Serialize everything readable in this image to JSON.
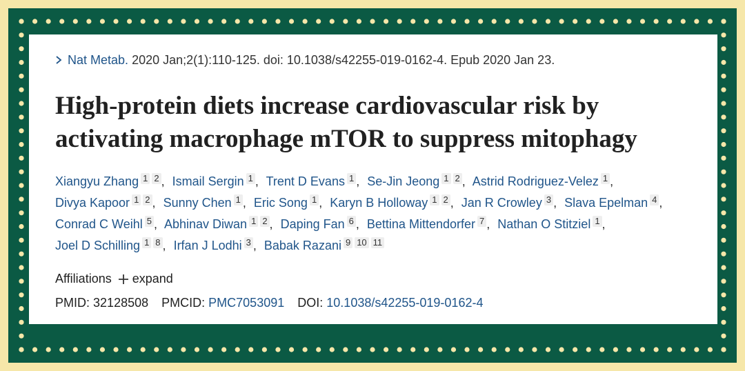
{
  "citation": {
    "journal": "Nat Metab.",
    "details": "2020 Jan;2(1):110-125. doi: 10.1038/s42255-019-0162-4. Epub 2020 Jan 23."
  },
  "title": "High-protein diets increase cardiovascular risk by activating macrophage mTOR to suppress mitophagy",
  "author_separator": ",",
  "authors": [
    {
      "name": "Xiangyu Zhang",
      "affiliations": [
        1,
        2
      ]
    },
    {
      "name": "Ismail Sergin",
      "affiliations": [
        1
      ]
    },
    {
      "name": "Trent D Evans",
      "affiliations": [
        1
      ]
    },
    {
      "name": "Se-Jin Jeong",
      "affiliations": [
        1,
        2
      ]
    },
    {
      "name": "Astrid Rodriguez-Velez",
      "affiliations": [
        1
      ]
    },
    {
      "name": "Divya Kapoor",
      "affiliations": [
        1,
        2
      ]
    },
    {
      "name": "Sunny Chen",
      "affiliations": [
        1
      ]
    },
    {
      "name": "Eric Song",
      "affiliations": [
        1
      ]
    },
    {
      "name": "Karyn B Holloway",
      "affiliations": [
        1,
        2
      ]
    },
    {
      "name": "Jan R Crowley",
      "affiliations": [
        3
      ]
    },
    {
      "name": "Slava Epelman",
      "affiliations": [
        4
      ]
    },
    {
      "name": "Conrad C Weihl",
      "affiliations": [
        5
      ]
    },
    {
      "name": "Abhinav Diwan",
      "affiliations": [
        1,
        2
      ]
    },
    {
      "name": "Daping Fan",
      "affiliations": [
        6
      ]
    },
    {
      "name": "Bettina Mittendorfer",
      "affiliations": [
        7
      ]
    },
    {
      "name": "Nathan O Stitziel",
      "affiliations": [
        1
      ]
    },
    {
      "name": "Joel D Schilling",
      "affiliations": [
        1,
        8
      ]
    },
    {
      "name": "Irfan J Lodhi",
      "affiliations": [
        3
      ]
    },
    {
      "name": "Babak Razani",
      "affiliations": [
        9,
        10,
        11
      ]
    }
  ],
  "affiliations": {
    "label": "Affiliations",
    "action": "expand"
  },
  "identifiers": {
    "pmid_label": "PMID:",
    "pmid": "32128508",
    "pmcid_label": "PMCID:",
    "pmcid": "PMC7053091",
    "doi_label": "DOI:",
    "doi": "10.1038/s42255-019-0162-4"
  }
}
